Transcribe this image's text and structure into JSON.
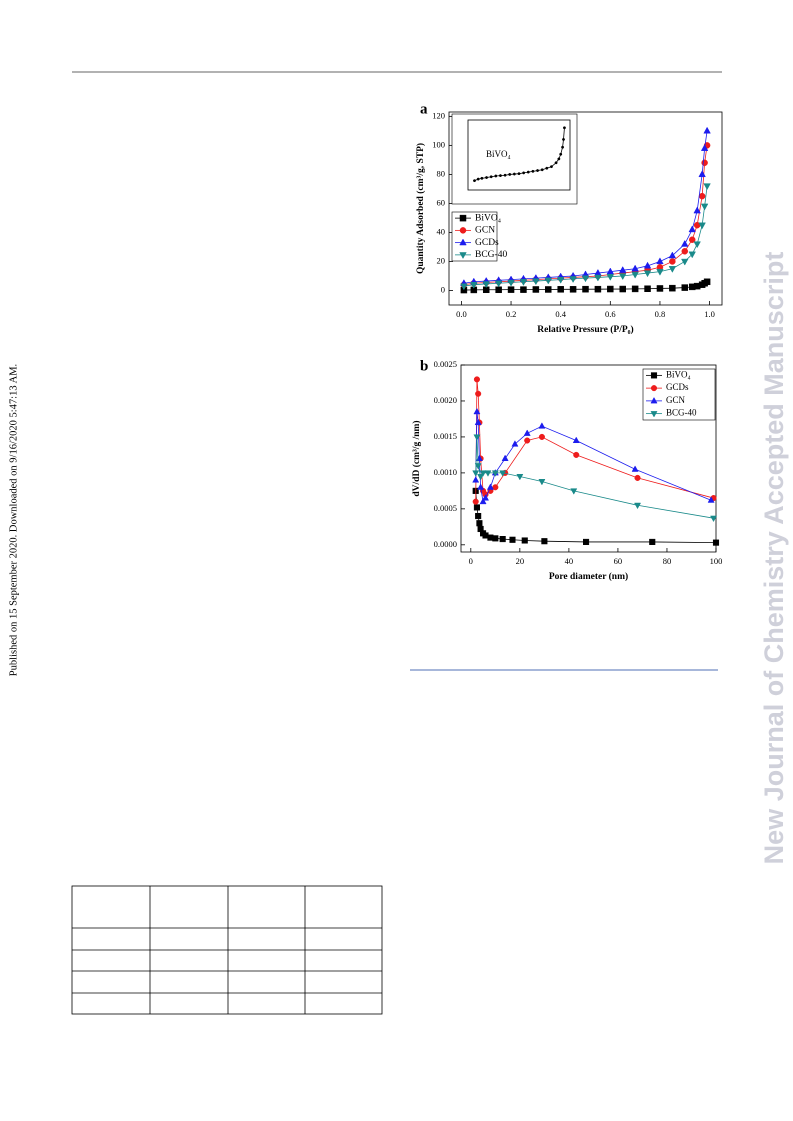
{
  "margin_note": "Published on 15 September 2020. Downloaded on 9/16/2020 5:47:13 AM.",
  "watermark": "New Journal of Chemistry Accepted Manuscript",
  "chart_data": [
    {
      "type": "line",
      "panel_label": "a",
      "x_label": "Relative Pressure (P/P₀)",
      "y_label": "Quantity Adsorbed (cm³/g, STP)",
      "xlim": [
        -0.05,
        1.05
      ],
      "ylim": [
        -10,
        123
      ],
      "xticks": [
        {
          "value": 0,
          "label": "0.0"
        },
        {
          "value": 0.2,
          "label": "0.2"
        },
        {
          "value": 0.4,
          "label": "0.4"
        },
        {
          "value": 0.6,
          "label": "0.6"
        },
        {
          "value": 0.8,
          "label": "0.8"
        },
        {
          "value": 1,
          "label": "1.0"
        }
      ],
      "yticks": [
        0,
        20,
        40,
        60,
        80,
        100,
        120
      ],
      "legend": "lower left",
      "x": [
        0.01,
        0.05,
        0.1,
        0.15,
        0.2,
        0.25,
        0.3,
        0.35,
        0.4,
        0.45,
        0.5,
        0.55,
        0.6,
        0.65,
        0.7,
        0.75,
        0.8,
        0.85,
        0.9,
        0.93,
        0.95,
        0.97,
        0.98,
        0.99
      ],
      "series": [
        {
          "name": "BiVO₄",
          "color": "#000000",
          "marker": "square",
          "values": [
            0.3,
            0.4,
            0.5,
            0.5,
            0.6,
            0.6,
            0.7,
            0.7,
            0.8,
            0.8,
            0.9,
            0.9,
            1,
            1,
            1.1,
            1.2,
            1.4,
            1.6,
            2,
            2.5,
            3,
            4,
            5,
            6
          ]
        },
        {
          "name": "GCN",
          "color": "#ee1c1c",
          "marker": "circle",
          "values": [
            4,
            5,
            5.5,
            6,
            6.5,
            7,
            7.5,
            8,
            8.5,
            9,
            9.5,
            10,
            11,
            12,
            13,
            14,
            16,
            20,
            27,
            35,
            45,
            65,
            88,
            100
          ]
        },
        {
          "name": "GCDs",
          "color": "#1c1cee",
          "marker": "triangle-up",
          "values": [
            5,
            6,
            6.5,
            7,
            7.5,
            8,
            8.5,
            9,
            9.5,
            10,
            11,
            12,
            13,
            14,
            15,
            17,
            20,
            24,
            32,
            42,
            55,
            80,
            98,
            110
          ]
        },
        {
          "name": "BCG-40",
          "color": "#1a8a8a",
          "marker": "triangle-down",
          "values": [
            3,
            4,
            4.5,
            5,
            5.5,
            6,
            6.5,
            7,
            7.5,
            8,
            8.5,
            9,
            9.5,
            10,
            11,
            12,
            13,
            15,
            20,
            25,
            32,
            45,
            58,
            72
          ]
        }
      ]
    },
    {
      "type": "line",
      "panel_label": "b",
      "x_label": "Pore diameter (nm)",
      "y_label": "dV/dD (cm³/g /nm)",
      "xlim": [
        -4,
        100
      ],
      "ylim": [
        -0.0001,
        0.0025
      ],
      "xticks": [
        0,
        20,
        40,
        60,
        80,
        100
      ],
      "yticks": [
        {
          "value": 0,
          "label": "0.0000"
        },
        {
          "value": 0.0005,
          "label": "0.0005"
        },
        {
          "value": 0.001,
          "label": "0.0010"
        },
        {
          "value": 0.0015,
          "label": "0.0015"
        },
        {
          "value": 0.002,
          "label": "0.0020"
        },
        {
          "value": 0.0025,
          "label": "0.0025"
        }
      ],
      "legend": "upper right",
      "series": [
        {
          "name": "BiVO₄",
          "color": "#000000",
          "marker": "square",
          "x": [
            2,
            2.5,
            3,
            3.5,
            4,
            5,
            6,
            8,
            10,
            13,
            17,
            22,
            30,
            47,
            74,
            100
          ],
          "values": [
            0.00075,
            0.00052,
            0.0004,
            0.0003,
            0.00022,
            0.00016,
            0.00013,
            0.0001,
            9e-05,
            8e-05,
            7e-05,
            6e-05,
            5e-05,
            4e-05,
            4e-05,
            3e-05
          ]
        },
        {
          "name": "GCDs",
          "color": "#ee1c1c",
          "marker": "circle",
          "x": [
            2,
            2.5,
            3,
            3.5,
            4,
            5,
            6,
            8,
            10,
            14,
            23,
            29,
            43,
            68,
            99
          ],
          "values": [
            0.0006,
            0.0023,
            0.0021,
            0.0017,
            0.0012,
            0.00075,
            0.0007,
            0.00075,
            0.0008,
            0.001,
            0.00145,
            0.0015,
            0.00125,
            0.00093,
            0.00065
          ]
        },
        {
          "name": "GCN",
          "color": "#1c1cee",
          "marker": "triangle-up",
          "x": [
            2,
            2.5,
            3,
            3.5,
            4,
            5,
            6,
            8,
            10,
            14,
            18,
            23,
            29,
            43,
            67,
            98
          ],
          "values": [
            0.0009,
            0.00185,
            0.0017,
            0.0012,
            0.0008,
            0.0006,
            0.00065,
            0.0008,
            0.001,
            0.0012,
            0.0014,
            0.00155,
            0.00165,
            0.00145,
            0.00105,
            0.00062
          ]
        },
        {
          "name": "BCG-40",
          "color": "#1a8a8a",
          "marker": "triangle-down",
          "x": [
            2,
            2.5,
            3,
            4,
            5,
            7,
            10,
            13,
            20,
            29,
            42,
            68,
            99
          ],
          "values": [
            0.001,
            0.0015,
            0.0011,
            0.00095,
            0.001,
            0.001,
            0.001,
            0.001,
            0.00095,
            0.00088,
            0.00075,
            0.00055,
            0.00037
          ]
        }
      ]
    },
    {
      "type": "line",
      "label": "BiVO₄",
      "xlim": [
        -0.05,
        1.05
      ],
      "ylim": [
        0,
        9
      ],
      "x": [
        0.02,
        0.06,
        0.1,
        0.15,
        0.2,
        0.25,
        0.3,
        0.35,
        0.4,
        0.45,
        0.5,
        0.55,
        0.6,
        0.65,
        0.7,
        0.75,
        0.8,
        0.85,
        0.9,
        0.93,
        0.95,
        0.97,
        0.98,
        0.99
      ],
      "series": [
        {
          "color": "#000000",
          "marker": "dot",
          "values": [
            1.2,
            1.4,
            1.5,
            1.6,
            1.7,
            1.8,
            1.85,
            1.9,
            2,
            2.05,
            2.1,
            2.2,
            2.3,
            2.4,
            2.5,
            2.6,
            2.8,
            3,
            3.5,
            4,
            4.6,
            5.5,
            6.5,
            8
          ]
        }
      ]
    }
  ]
}
